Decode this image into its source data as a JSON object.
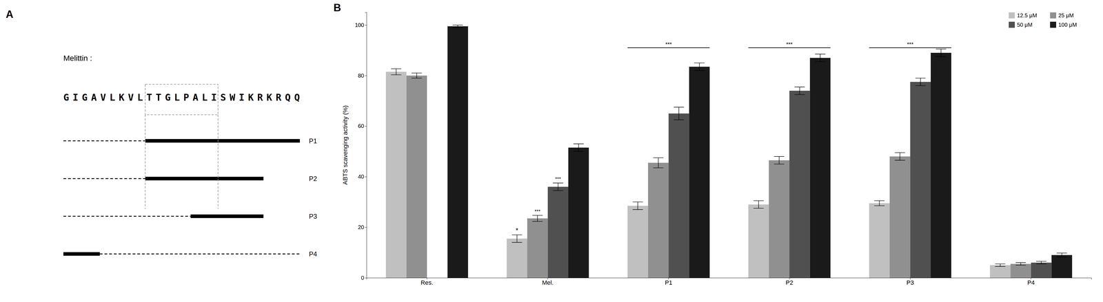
{
  "chart_data": [
    {
      "type": "sequence_diagram",
      "title": "A",
      "label": "Melittin :",
      "sequence": "GIGAVLKVLTTGLPALISWIKRKRQQ",
      "box": [
        9,
        17
      ],
      "peptides": [
        {
          "name": "P1",
          "dashed": [
            0.0,
            0.346
          ],
          "solid": [
            0.346,
            1.0
          ]
        },
        {
          "name": "P2",
          "dashed": [
            0.0,
            0.346
          ],
          "solid": [
            0.346,
            0.846
          ]
        },
        {
          "name": "P3",
          "dashed": [
            0.0,
            0.538
          ],
          "solid": [
            0.538,
            0.846
          ]
        },
        {
          "name": "P4",
          "solid": [
            0.0,
            0.154
          ],
          "dashed": [
            0.154,
            1.0
          ]
        }
      ]
    },
    {
      "type": "bar",
      "title": "B",
      "categories": [
        "Res.",
        "Mel.",
        "P1",
        "P2",
        "P3",
        "P4"
      ],
      "ylabel": "ABTS scavenging activity (%)",
      "ylim": [
        0,
        105
      ],
      "yticks": [
        0,
        20,
        40,
        60,
        80,
        100
      ],
      "grid": false,
      "legend": "top-right",
      "series": [
        {
          "name": "12.5 μM",
          "color": "#c0c0c0",
          "values": [
            81.5,
            15.5,
            28.5,
            29.0,
            29.5,
            5.0
          ],
          "errors": [
            1.2,
            1.5,
            1.5,
            1.5,
            1.0,
            0.5
          ]
        },
        {
          "name": "25 μM",
          "color": "#909090",
          "values": [
            80.0,
            23.5,
            45.5,
            46.5,
            48.0,
            5.5
          ],
          "errors": [
            1.0,
            1.2,
            2.0,
            1.5,
            1.5,
            0.5
          ]
        },
        {
          "name": "50 μM",
          "color": "#505050",
          "values": [
            null,
            36.0,
            65.0,
            74.0,
            77.5,
            6.0
          ],
          "errors": [
            null,
            1.5,
            2.5,
            1.5,
            1.5,
            0.5
          ]
        },
        {
          "name": "100 μM",
          "color": "#1a1a1a",
          "values": [
            99.5,
            51.5,
            83.5,
            87.0,
            89.0,
            9.0
          ],
          "errors": [
            0.5,
            1.5,
            1.5,
            1.5,
            1.5,
            0.8
          ]
        }
      ],
      "annotations": [
        {
          "text": "*",
          "category": "Mel.",
          "series": "12.5 μM"
        },
        {
          "text": "***",
          "category": "Mel.",
          "series": "25 μM"
        },
        {
          "text": "***",
          "category": "Mel.",
          "series": "50 μM"
        },
        {
          "text": "***",
          "category": "P1",
          "y": 91
        },
        {
          "text": "***",
          "category": "P2",
          "y": 91
        },
        {
          "text": "***",
          "category": "P3",
          "y": 91
        }
      ]
    }
  ]
}
